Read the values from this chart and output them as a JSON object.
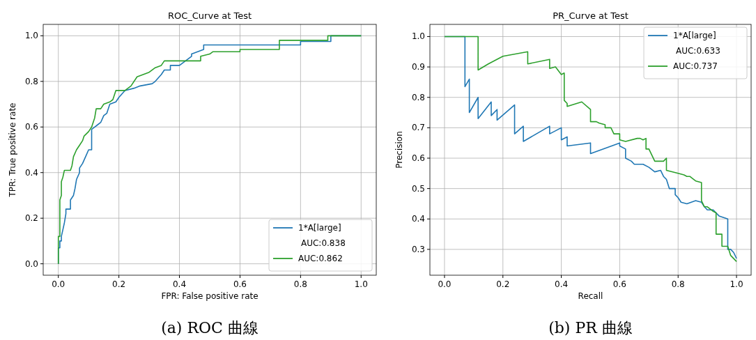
{
  "chart_data": [
    {
      "type": "line",
      "title": "ROC_Curve at Test",
      "xlabel": "FPR: False positive rate",
      "ylabel": "TPR: True positive rate",
      "xlim": [
        -0.05,
        1.05
      ],
      "ylim": [
        -0.05,
        1.05
      ],
      "xticks": [
        {
          "value": 0,
          "label": "0.0"
        },
        {
          "value": 0.2,
          "label": "0.2"
        },
        {
          "value": 0.4,
          "label": "0.4"
        },
        {
          "value": 0.6,
          "label": "0.6"
        },
        {
          "value": 0.8,
          "label": "0.8"
        },
        {
          "value": 1,
          "label": "1.0"
        }
      ],
      "yticks": [
        {
          "value": 0,
          "label": "0.0"
        },
        {
          "value": 0.2,
          "label": "0.2"
        },
        {
          "value": 0.4,
          "label": "0.4"
        },
        {
          "value": 0.6,
          "label": "0.6"
        },
        {
          "value": 0.8,
          "label": "0.8"
        },
        {
          "value": 1,
          "label": "1.0"
        }
      ],
      "grid": true,
      "legend": "bottom right",
      "annotations": [
        "(a) ROC 曲線"
      ],
      "series": [
        {
          "name": "1*A[large]\nAUC:0.838",
          "color": "#1f77b4",
          "x": [
            0,
            0,
            0.005,
            0.005,
            0.01,
            0.01,
            0.015,
            0.02,
            0.025,
            0.025,
            0.04,
            0.04,
            0.05,
            0.055,
            0.06,
            0.07,
            0.07,
            0.08,
            0.09,
            0.1,
            0.11,
            0.11,
            0.12,
            0.13,
            0.14,
            0.15,
            0.16,
            0.17,
            0.19,
            0.2,
            0.22,
            0.25,
            0.27,
            0.31,
            0.32,
            0.34,
            0.35,
            0.37,
            0.37,
            0.4,
            0.41,
            0.44,
            0.44,
            0.46,
            0.48,
            0.48,
            0.8,
            0.8,
            0.9,
            0.9,
            1
          ],
          "values": [
            0,
            0.07,
            0.07,
            0.1,
            0.1,
            0.12,
            0.15,
            0.18,
            0.22,
            0.24,
            0.24,
            0.28,
            0.3,
            0.33,
            0.37,
            0.4,
            0.42,
            0.44,
            0.47,
            0.5,
            0.5,
            0.59,
            0.6,
            0.61,
            0.62,
            0.65,
            0.66,
            0.7,
            0.71,
            0.73,
            0.76,
            0.77,
            0.78,
            0.79,
            0.8,
            0.83,
            0.85,
            0.85,
            0.87,
            0.87,
            0.88,
            0.91,
            0.92,
            0.93,
            0.94,
            0.96,
            0.96,
            0.975,
            0.975,
            1,
            1
          ]
        },
        {
          "name": "AUC:0.862",
          "color": "#2ca02c",
          "x": [
            0,
            0,
            0.005,
            0.005,
            0.01,
            0.01,
            0.015,
            0.02,
            0.04,
            0.045,
            0.05,
            0.06,
            0.07,
            0.08,
            0.085,
            0.1,
            0.11,
            0.12,
            0.125,
            0.14,
            0.15,
            0.17,
            0.18,
            0.19,
            0.22,
            0.24,
            0.26,
            0.28,
            0.3,
            0.32,
            0.34,
            0.35,
            0.47,
            0.47,
            0.5,
            0.51,
            0.6,
            0.6,
            0.73,
            0.73,
            0.89,
            0.89,
            1
          ],
          "values": [
            0,
            0.12,
            0.12,
            0.28,
            0.3,
            0.36,
            0.38,
            0.41,
            0.41,
            0.43,
            0.47,
            0.5,
            0.52,
            0.54,
            0.56,
            0.58,
            0.6,
            0.64,
            0.68,
            0.68,
            0.7,
            0.71,
            0.72,
            0.76,
            0.76,
            0.78,
            0.82,
            0.83,
            0.84,
            0.86,
            0.87,
            0.89,
            0.89,
            0.91,
            0.92,
            0.93,
            0.93,
            0.94,
            0.94,
            0.98,
            0.98,
            1,
            1
          ]
        }
      ]
    },
    {
      "type": "line",
      "title": "PR_Curve at Test",
      "xlabel": "Recall",
      "ylabel": "Precision",
      "xlim": [
        -0.05,
        1.05
      ],
      "ylim": [
        0.215,
        1.04
      ],
      "xticks": [
        {
          "value": 0,
          "label": "0.0"
        },
        {
          "value": 0.2,
          "label": "0.2"
        },
        {
          "value": 0.4,
          "label": "0.4"
        },
        {
          "value": 0.6,
          "label": "0.6"
        },
        {
          "value": 0.8,
          "label": "0.8"
        },
        {
          "value": 1,
          "label": "1.0"
        }
      ],
      "yticks": [
        {
          "value": 0.3,
          "label": "0.3"
        },
        {
          "value": 0.4,
          "label": "0.4"
        },
        {
          "value": 0.5,
          "label": "0.5"
        },
        {
          "value": 0.6,
          "label": "0.6"
        },
        {
          "value": 0.7,
          "label": "0.7"
        },
        {
          "value": 0.8,
          "label": "0.8"
        },
        {
          "value": 0.9,
          "label": "0.9"
        },
        {
          "value": 1,
          "label": "1.0"
        }
      ],
      "grid": true,
      "legend": "top right",
      "annotations": [
        "(b) PR 曲線"
      ],
      "series": [
        {
          "name": "1*A[large]\nAUC:0.633",
          "color": "#1f77b4",
          "x": [
            0,
            0.07,
            0.07,
            0.085,
            0.085,
            0.115,
            0.115,
            0.16,
            0.16,
            0.18,
            0.18,
            0.24,
            0.24,
            0.27,
            0.27,
            0.36,
            0.36,
            0.4,
            0.4,
            0.42,
            0.42,
            0.5,
            0.5,
            0.6,
            0.6,
            0.62,
            0.62,
            0.64,
            0.65,
            0.68,
            0.7,
            0.72,
            0.74,
            0.75,
            0.76,
            0.77,
            0.79,
            0.79,
            0.8,
            0.81,
            0.83,
            0.86,
            0.88,
            0.89,
            0.9,
            0.92,
            0.93,
            0.94,
            0.97,
            0.97,
            0.98,
            0.99,
            1
          ],
          "values": [
            1,
            1,
            0.835,
            0.86,
            0.75,
            0.8,
            0.73,
            0.785,
            0.74,
            0.76,
            0.725,
            0.775,
            0.68,
            0.705,
            0.655,
            0.705,
            0.68,
            0.7,
            0.66,
            0.67,
            0.64,
            0.65,
            0.615,
            0.65,
            0.64,
            0.63,
            0.6,
            0.59,
            0.58,
            0.58,
            0.57,
            0.555,
            0.56,
            0.54,
            0.53,
            0.5,
            0.5,
            0.48,
            0.47,
            0.455,
            0.45,
            0.46,
            0.455,
            0.44,
            0.43,
            0.43,
            0.42,
            0.41,
            0.4,
            0.3,
            0.3,
            0.29,
            0.27
          ]
        },
        {
          "name": "AUC:0.737",
          "color": "#2ca02c",
          "x": [
            0,
            0.115,
            0.115,
            0.15,
            0.2,
            0.285,
            0.285,
            0.36,
            0.36,
            0.38,
            0.4,
            0.41,
            0.41,
            0.42,
            0.42,
            0.47,
            0.5,
            0.5,
            0.52,
            0.53,
            0.55,
            0.55,
            0.57,
            0.58,
            0.6,
            0.6,
            0.62,
            0.66,
            0.67,
            0.68,
            0.69,
            0.69,
            0.7,
            0.71,
            0.72,
            0.75,
            0.76,
            0.76,
            0.8,
            0.82,
            0.83,
            0.84,
            0.86,
            0.88,
            0.88,
            0.89,
            0.9,
            0.92,
            0.93,
            0.93,
            0.95,
            0.95,
            0.97,
            0.98,
            1
          ],
          "values": [
            1,
            1,
            0.89,
            0.91,
            0.935,
            0.95,
            0.91,
            0.925,
            0.895,
            0.9,
            0.875,
            0.88,
            0.79,
            0.78,
            0.77,
            0.785,
            0.76,
            0.72,
            0.72,
            0.715,
            0.71,
            0.7,
            0.7,
            0.68,
            0.68,
            0.66,
            0.655,
            0.665,
            0.665,
            0.66,
            0.665,
            0.63,
            0.63,
            0.61,
            0.59,
            0.59,
            0.6,
            0.56,
            0.55,
            0.545,
            0.54,
            0.54,
            0.525,
            0.52,
            0.46,
            0.44,
            0.44,
            0.425,
            0.42,
            0.35,
            0.35,
            0.31,
            0.31,
            0.28,
            0.26
          ]
        }
      ]
    }
  ]
}
